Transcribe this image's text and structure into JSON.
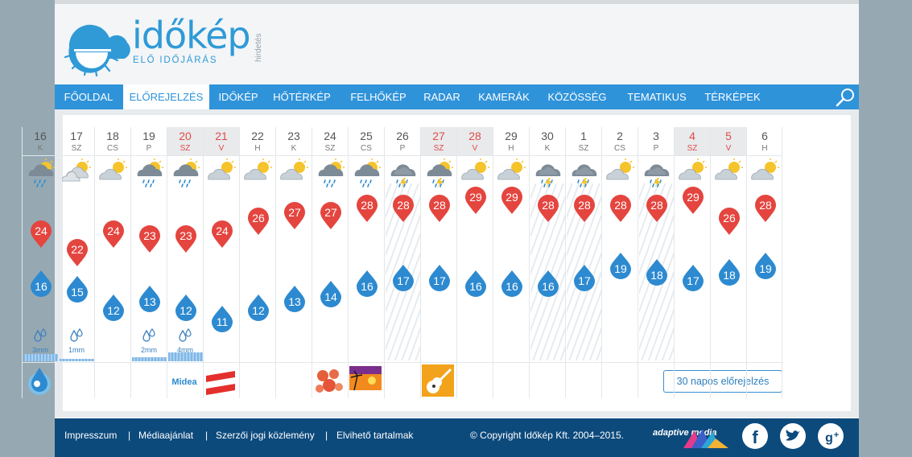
{
  "brand": {
    "name": "időkép",
    "tagline": "ELŐ IDŐJÁRÁS",
    "ad_label": "hirdetés"
  },
  "nav": {
    "items": [
      "FŐOLDAL",
      "ELŐREJELZÉS",
      "IDŐKÉP",
      "HŐTÉRKÉP",
      "FELHŐKÉP",
      "RADAR",
      "KAMERÁK",
      "KÖZÖSSÉG",
      "TEMATIKUS",
      "TÉRKÉPEK"
    ],
    "active": "ELŐREJELZÉS",
    "search_icon": "search-icon"
  },
  "forecast": {
    "days": [
      {
        "date": "16",
        "dow": "K",
        "weekend": false,
        "icon": "cloud-sun-rain",
        "max": "24",
        "min": "16",
        "precip": "3mm",
        "precip_fill": 1.0,
        "rain_bg": false
      },
      {
        "date": "17",
        "dow": "SZ",
        "weekend": false,
        "icon": "cloud-sun",
        "max": "22",
        "min": "15",
        "precip": "1mm",
        "precip_fill": 0.3,
        "rain_bg": false
      },
      {
        "date": "18",
        "dow": "CS",
        "weekend": false,
        "icon": "sun-cloud",
        "max": "24",
        "min": "12",
        "precip": "",
        "precip_fill": 0,
        "rain_bg": false
      },
      {
        "date": "19",
        "dow": "P",
        "weekend": false,
        "icon": "cloud-sun-rain",
        "max": "23",
        "min": "13",
        "precip": "2mm",
        "precip_fill": 0.6,
        "rain_bg": false
      },
      {
        "date": "20",
        "dow": "SZ",
        "weekend": true,
        "icon": "cloud-sun-rain",
        "max": "23",
        "min": "12",
        "precip": "4mm",
        "precip_fill": 1.2,
        "rain_bg": false
      },
      {
        "date": "21",
        "dow": "V",
        "weekend": true,
        "icon": "sun-cloud",
        "max": "24",
        "min": "11",
        "precip": "",
        "precip_fill": 0,
        "rain_bg": false
      },
      {
        "date": "22",
        "dow": "H",
        "weekend": false,
        "icon": "sun-cloud",
        "max": "26",
        "min": "12",
        "precip": "",
        "precip_fill": 0,
        "rain_bg": false
      },
      {
        "date": "23",
        "dow": "K",
        "weekend": false,
        "icon": "sun-cloud",
        "max": "27",
        "min": "13",
        "precip": "",
        "precip_fill": 0,
        "rain_bg": false
      },
      {
        "date": "24",
        "dow": "SZ",
        "weekend": false,
        "icon": "cloud-sun-rain",
        "max": "27",
        "min": "14",
        "precip": "",
        "precip_fill": 0,
        "rain_bg": false
      },
      {
        "date": "25",
        "dow": "CS",
        "weekend": false,
        "icon": "cloud-sun-rain",
        "max": "28",
        "min": "16",
        "precip": "",
        "precip_fill": 0,
        "rain_bg": false
      },
      {
        "date": "26",
        "dow": "P",
        "weekend": false,
        "icon": "cloud-storm",
        "max": "28",
        "min": "17",
        "precip": "",
        "precip_fill": 0,
        "rain_bg": true
      },
      {
        "date": "27",
        "dow": "SZ",
        "weekend": true,
        "icon": "cloud-sun-storm",
        "max": "28",
        "min": "17",
        "precip": "",
        "precip_fill": 0,
        "rain_bg": false
      },
      {
        "date": "28",
        "dow": "V",
        "weekend": true,
        "icon": "sun-cloud",
        "max": "29",
        "min": "16",
        "precip": "",
        "precip_fill": 0,
        "rain_bg": false
      },
      {
        "date": "29",
        "dow": "H",
        "weekend": false,
        "icon": "sun-cloud",
        "max": "29",
        "min": "16",
        "precip": "",
        "precip_fill": 0,
        "rain_bg": false
      },
      {
        "date": "30",
        "dow": "K",
        "weekend": false,
        "icon": "cloud-storm",
        "max": "28",
        "min": "16",
        "precip": "",
        "precip_fill": 0,
        "rain_bg": true
      },
      {
        "date": "1",
        "dow": "SZ",
        "weekend": false,
        "icon": "cloud-storm",
        "max": "28",
        "min": "17",
        "precip": "",
        "precip_fill": 0,
        "rain_bg": true
      },
      {
        "date": "2",
        "dow": "CS",
        "weekend": false,
        "icon": "sun-cloud",
        "max": "28",
        "min": "19",
        "precip": "",
        "precip_fill": 0,
        "rain_bg": false
      },
      {
        "date": "3",
        "dow": "P",
        "weekend": false,
        "icon": "cloud-storm",
        "max": "28",
        "min": "18",
        "precip": "",
        "precip_fill": 0,
        "rain_bg": true
      },
      {
        "date": "4",
        "dow": "SZ",
        "weekend": true,
        "icon": "sun-cloud",
        "max": "29",
        "min": "17",
        "precip": "",
        "precip_fill": 0,
        "rain_bg": false
      },
      {
        "date": "5",
        "dow": "V",
        "weekend": true,
        "icon": "sun-cloud",
        "max": "26",
        "min": "18",
        "precip": "",
        "precip_fill": 0,
        "rain_bg": false
      },
      {
        "date": "6",
        "dow": "H",
        "weekend": false,
        "icon": "sun-cloud",
        "max": "28",
        "min": "19",
        "precip": "",
        "precip_fill": 0,
        "rain_bg": false
      }
    ],
    "ads": [
      {
        "col": 0,
        "name": "water-drop-logo"
      },
      {
        "col": 4,
        "name": "midea-logo",
        "text": "Midea"
      },
      {
        "col": 5,
        "name": "austria-flag-logo"
      },
      {
        "col": 8,
        "name": "flowers-logo"
      },
      {
        "col": 9,
        "name": "sunset-logo"
      },
      {
        "col": 11,
        "name": "guitar-logo"
      }
    ],
    "button_30day": "30 napos előrejelzés"
  },
  "colors": {
    "max_pin": "#e4453f",
    "min_drop": "#2d8ad0",
    "nav": "#2f93da",
    "footer": "#0d4a7c"
  },
  "footer": {
    "links": [
      "Impresszum",
      "Médiaajánlat",
      "Szerzői jogi közlemény",
      "Elvihető tartalmak"
    ],
    "separator": "|",
    "copyright": "© Copyright  Időkép Kft.  2004–2015.",
    "adaptive": "adaptive media",
    "social": [
      "facebook-icon",
      "twitter-icon",
      "google-plus-icon"
    ]
  }
}
